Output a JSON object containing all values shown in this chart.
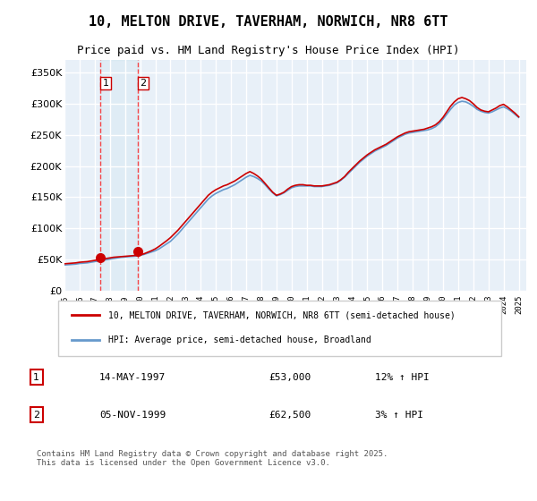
{
  "title": "10, MELTON DRIVE, TAVERHAM, NORWICH, NR8 6TT",
  "subtitle": "Price paid vs. HM Land Registry's House Price Index (HPI)",
  "ylabel_ticks": [
    "£0",
    "£50K",
    "£100K",
    "£150K",
    "£200K",
    "£250K",
    "£300K",
    "£350K"
  ],
  "ytick_values": [
    0,
    50000,
    100000,
    150000,
    200000,
    250000,
    300000,
    350000
  ],
  "ylim": [
    0,
    370000
  ],
  "xlim_start": 1995,
  "xlim_end": 2025.5,
  "background_color": "#e8f0f8",
  "plot_bg_color": "#e8f0f8",
  "grid_color": "#ffffff",
  "line_color_house": "#cc0000",
  "line_color_hpi": "#6699cc",
  "legend_label_house": "10, MELTON DRIVE, TAVERHAM, NORWICH, NR8 6TT (semi-detached house)",
  "legend_label_hpi": "HPI: Average price, semi-detached house, Broadland",
  "sale1_date": "14-MAY-1997",
  "sale1_price": "£53,000",
  "sale1_hpi": "12% ↑ HPI",
  "sale1_year": 1997.37,
  "sale2_date": "05-NOV-1999",
  "sale2_price": "£62,500",
  "sale2_hpi": "3% ↑ HPI",
  "sale2_year": 1999.84,
  "footer": "Contains HM Land Registry data © Crown copyright and database right 2025.\nThis data is licensed under the Open Government Licence v3.0.",
  "hpi_years": [
    1995,
    1995.25,
    1995.5,
    1995.75,
    1996,
    1996.25,
    1996.5,
    1996.75,
    1997,
    1997.25,
    1997.5,
    1997.75,
    1998,
    1998.25,
    1998.5,
    1998.75,
    1999,
    1999.25,
    1999.5,
    1999.75,
    2000,
    2000.25,
    2000.5,
    2000.75,
    2001,
    2001.25,
    2001.5,
    2001.75,
    2002,
    2002.25,
    2002.5,
    2002.75,
    2003,
    2003.25,
    2003.5,
    2003.75,
    2004,
    2004.25,
    2004.5,
    2004.75,
    2005,
    2005.25,
    2005.5,
    2005.75,
    2006,
    2006.25,
    2006.5,
    2006.75,
    2007,
    2007.25,
    2007.5,
    2007.75,
    2008,
    2008.25,
    2008.5,
    2008.75,
    2009,
    2009.25,
    2009.5,
    2009.75,
    2010,
    2010.25,
    2010.5,
    2010.75,
    2011,
    2011.25,
    2011.5,
    2011.75,
    2012,
    2012.25,
    2012.5,
    2012.75,
    2013,
    2013.25,
    2013.5,
    2013.75,
    2014,
    2014.25,
    2014.5,
    2014.75,
    2015,
    2015.25,
    2015.5,
    2015.75,
    2016,
    2016.25,
    2016.5,
    2016.75,
    2017,
    2017.25,
    2017.5,
    2017.75,
    2018,
    2018.25,
    2018.5,
    2018.75,
    2019,
    2019.25,
    2019.5,
    2019.75,
    2020,
    2020.25,
    2020.5,
    2020.75,
    2021,
    2021.25,
    2021.5,
    2021.75,
    2022,
    2022.25,
    2022.5,
    2022.75,
    2023,
    2023.25,
    2023.5,
    2023.75,
    2024,
    2024.25,
    2024.5,
    2024.75,
    2025
  ],
  "hpi_values": [
    41000,
    41500,
    42000,
    42500,
    43500,
    44000,
    44500,
    45500,
    46500,
    47500,
    48500,
    49500,
    50500,
    51500,
    52500,
    53500,
    54000,
    54500,
    55000,
    55500,
    56500,
    58000,
    60000,
    62000,
    64000,
    67000,
    71000,
    75000,
    79000,
    85000,
    91000,
    98000,
    105000,
    112000,
    119000,
    126000,
    133000,
    140000,
    147000,
    152000,
    156000,
    159000,
    162000,
    164000,
    167000,
    170000,
    174000,
    178000,
    182000,
    185000,
    183000,
    180000,
    176000,
    170000,
    163000,
    157000,
    152000,
    154000,
    157000,
    161000,
    165000,
    167000,
    168000,
    168000,
    168000,
    168000,
    167000,
    167000,
    167000,
    168000,
    169000,
    171000,
    173000,
    177000,
    182000,
    188000,
    194000,
    200000,
    206000,
    211000,
    216000,
    220000,
    224000,
    227000,
    230000,
    233000,
    237000,
    241000,
    245000,
    248000,
    251000,
    253000,
    254000,
    255000,
    256000,
    257000,
    258000,
    260000,
    263000,
    268000,
    275000,
    283000,
    291000,
    298000,
    302000,
    304000,
    303000,
    300000,
    296000,
    291000,
    288000,
    286000,
    285000,
    287000,
    290000,
    293000,
    295000,
    292000,
    288000,
    283000,
    278000
  ],
  "house_years": [
    1995,
    1995.25,
    1995.5,
    1995.75,
    1996,
    1996.25,
    1996.5,
    1996.75,
    1997,
    1997.25,
    1997.5,
    1997.75,
    1998,
    1998.25,
    1998.5,
    1998.75,
    1999,
    1999.25,
    1999.5,
    1999.75,
    2000,
    2000.25,
    2000.5,
    2000.75,
    2001,
    2001.25,
    2001.5,
    2001.75,
    2002,
    2002.25,
    2002.5,
    2002.75,
    2003,
    2003.25,
    2003.5,
    2003.75,
    2004,
    2004.25,
    2004.5,
    2004.75,
    2005,
    2005.25,
    2005.5,
    2005.75,
    2006,
    2006.25,
    2006.5,
    2006.75,
    2007,
    2007.25,
    2007.5,
    2007.75,
    2008,
    2008.25,
    2008.5,
    2008.75,
    2009,
    2009.25,
    2009.5,
    2009.75,
    2010,
    2010.25,
    2010.5,
    2010.75,
    2011,
    2011.25,
    2011.5,
    2011.75,
    2012,
    2012.25,
    2012.5,
    2012.75,
    2013,
    2013.25,
    2013.5,
    2013.75,
    2014,
    2014.25,
    2014.5,
    2014.75,
    2015,
    2015.25,
    2015.5,
    2015.75,
    2016,
    2016.25,
    2016.5,
    2016.75,
    2017,
    2017.25,
    2017.5,
    2017.75,
    2018,
    2018.25,
    2018.5,
    2018.75,
    2019,
    2019.25,
    2019.5,
    2019.75,
    2020,
    2020.25,
    2020.5,
    2020.75,
    2021,
    2021.25,
    2021.5,
    2021.75,
    2022,
    2022.25,
    2022.5,
    2022.75,
    2023,
    2023.25,
    2023.5,
    2023.75,
    2024,
    2024.25,
    2024.5,
    2024.75,
    2025
  ],
  "house_values": [
    43000,
    43500,
    44000,
    44500,
    45500,
    46000,
    46500,
    47500,
    48500,
    49500,
    50500,
    51500,
    52500,
    53500,
    54000,
    54500,
    55000,
    55500,
    56000,
    56500,
    57500,
    59000,
    61500,
    64000,
    67000,
    71000,
    75500,
    80000,
    85000,
    91000,
    97000,
    104000,
    111000,
    118000,
    125000,
    132000,
    139000,
    146000,
    153000,
    158000,
    162000,
    165000,
    168000,
    170000,
    173000,
    176000,
    180000,
    184000,
    188000,
    191000,
    188000,
    184000,
    179000,
    172000,
    165000,
    158000,
    153000,
    155000,
    158000,
    163000,
    167000,
    169000,
    170000,
    170000,
    169000,
    169000,
    168000,
    168000,
    168000,
    169000,
    170000,
    172000,
    174000,
    178000,
    183000,
    190000,
    196000,
    202000,
    208000,
    213000,
    218000,
    222000,
    226000,
    229000,
    232000,
    235000,
    239000,
    243000,
    247000,
    250000,
    253000,
    255000,
    256000,
    257000,
    258000,
    259000,
    261000,
    263000,
    266000,
    271000,
    278000,
    287000,
    296000,
    303000,
    308000,
    310000,
    308000,
    305000,
    300000,
    294000,
    290000,
    288000,
    287000,
    290000,
    293000,
    297000,
    299000,
    295000,
    290000,
    285000,
    279000
  ]
}
